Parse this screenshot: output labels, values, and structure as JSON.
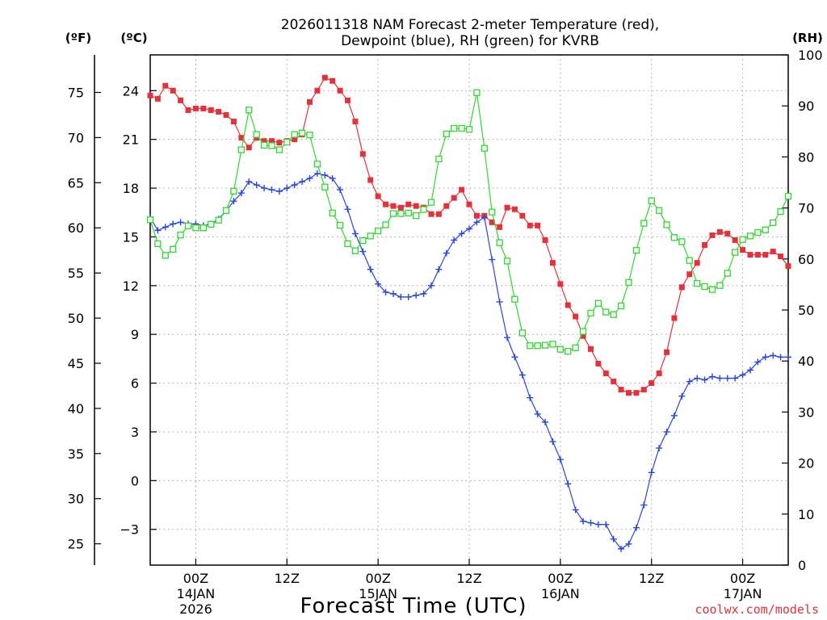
{
  "chart_data": {
    "type": "line",
    "title": [
      "2026011318 NAM Forecast 2-meter Temperature (red),",
      "Dewpoint (blue), RH (green) for KVRB"
    ],
    "xlabel": "Forecast Time (UTC)",
    "credit": "coolwx.com/models",
    "units": {
      "fahrenheit": "(ºF)",
      "celsius": "(ºC)",
      "rh": "(RH)"
    },
    "x_range_hours": [
      0,
      84
    ],
    "x_ticks": [
      {
        "hour": 6,
        "time": "00Z",
        "date": "14JAN",
        "year": "2026"
      },
      {
        "hour": 18,
        "time": "12Z",
        "date": "",
        "year": ""
      },
      {
        "hour": 30,
        "time": "00Z",
        "date": "15JAN",
        "year": ""
      },
      {
        "hour": 42,
        "time": "12Z",
        "date": "",
        "year": ""
      },
      {
        "hour": 54,
        "time": "00Z",
        "date": "16JAN",
        "year": ""
      },
      {
        "hour": 66,
        "time": "12Z",
        "date": "",
        "year": ""
      },
      {
        "hour": 78,
        "time": "00Z",
        "date": "17JAN",
        "year": ""
      }
    ],
    "celsius_axis": {
      "range": [
        -5.2,
        26.2
      ],
      "ticks": [
        "24",
        "21",
        "18",
        "15",
        "12",
        "9",
        "6",
        "3",
        "0",
        "−3"
      ],
      "tick_values": [
        24,
        21,
        18,
        15,
        12,
        9,
        6,
        3,
        0,
        -3
      ]
    },
    "fahrenheit_axis": {
      "ticks": [
        "75",
        "70",
        "65",
        "60",
        "55",
        "50",
        "45",
        "40",
        "35",
        "30",
        "25"
      ],
      "tick_values": [
        75,
        70,
        65,
        60,
        55,
        50,
        45,
        40,
        35,
        30,
        25
      ]
    },
    "rh_axis": {
      "range": [
        0,
        100
      ],
      "ticks": [
        "100",
        "90",
        "80",
        "70",
        "60",
        "50",
        "40",
        "30",
        "20",
        "10",
        "0"
      ],
      "tick_values": [
        100,
        90,
        80,
        70,
        60,
        50,
        40,
        30,
        20,
        10,
        0
      ]
    },
    "colors": {
      "temperature": "#e8303a",
      "dewpoint": "#2a44e0",
      "rh": "#2ed82e",
      "grid": "#a0a0a0"
    },
    "series": [
      {
        "name": "Temperature",
        "units": "C",
        "hours": [
          0,
          1,
          2,
          3,
          4,
          5,
          6,
          7,
          8,
          9,
          10,
          11,
          12,
          13,
          14,
          15,
          16,
          17,
          18,
          19,
          20,
          21,
          22,
          23,
          24,
          25,
          26,
          27,
          28,
          29,
          30,
          31,
          32,
          33,
          34,
          35,
          36,
          37,
          38,
          39,
          40,
          41,
          42,
          43,
          44,
          45,
          46,
          47,
          48,
          49,
          50,
          51,
          52,
          53,
          54,
          55,
          56,
          57,
          58,
          59,
          60,
          61,
          62,
          63,
          64,
          65,
          66,
          67,
          68,
          69,
          70,
          71,
          72,
          73,
          74,
          75,
          76,
          77,
          78,
          79,
          80,
          81,
          82,
          83,
          84
        ],
        "values": [
          23.7,
          23.5,
          24.3,
          24.0,
          23.4,
          22.8,
          22.9,
          22.9,
          22.8,
          22.7,
          22.5,
          22.1,
          21.1,
          20.5,
          21.1,
          20.9,
          20.9,
          20.8,
          20.9,
          21.0,
          21.3,
          23.3,
          24.0,
          24.8,
          24.6,
          24.0,
          23.4,
          22.1,
          20.1,
          18.5,
          17.5,
          17.0,
          16.9,
          16.8,
          17.0,
          16.9,
          16.8,
          16.4,
          16.4,
          16.9,
          17.4,
          17.9,
          17.0,
          16.3,
          16.3,
          15.9,
          15.6,
          16.8,
          16.7,
          16.3,
          15.7,
          15.7,
          14.8,
          13.4,
          12.1,
          10.8,
          10.1,
          8.9,
          8.1,
          7.2,
          6.6,
          6.1,
          5.6,
          5.4,
          5.4,
          5.6,
          6.0,
          6.6,
          7.9,
          10.0,
          11.9,
          12.7,
          13.4,
          14.5,
          15.1,
          15.3,
          15.2,
          14.8,
          14.2,
          13.9,
          13.9,
          13.9,
          14.1,
          13.8,
          13.2
        ]
      },
      {
        "name": "Dewpoint",
        "units": "C",
        "hours": [
          0,
          1,
          2,
          3,
          4,
          5,
          6,
          7,
          8,
          9,
          10,
          11,
          12,
          13,
          14,
          15,
          16,
          17,
          18,
          19,
          20,
          21,
          22,
          23,
          24,
          25,
          26,
          27,
          28,
          29,
          30,
          31,
          32,
          33,
          34,
          35,
          36,
          37,
          38,
          39,
          40,
          41,
          42,
          43,
          44,
          45,
          46,
          47,
          48,
          49,
          50,
          51,
          52,
          53,
          54,
          55,
          56,
          57,
          58,
          59,
          60,
          61,
          62,
          63,
          64,
          65,
          66,
          67,
          68,
          69,
          70,
          71,
          72,
          73,
          74,
          75,
          76,
          77,
          78,
          79,
          80,
          81,
          82,
          83,
          84
        ],
        "values": [
          16.2,
          15.4,
          15.6,
          15.8,
          15.9,
          15.8,
          15.8,
          15.7,
          15.8,
          16.1,
          16.6,
          17.2,
          17.7,
          18.4,
          18.2,
          18.0,
          17.9,
          17.8,
          18.0,
          18.2,
          18.4,
          18.6,
          18.9,
          18.8,
          18.6,
          17.9,
          16.7,
          15.2,
          14.1,
          13.0,
          12.1,
          11.6,
          11.5,
          11.3,
          11.3,
          11.4,
          11.5,
          12.0,
          13.0,
          14.0,
          14.8,
          15.2,
          15.5,
          15.9,
          16.2,
          13.6,
          11.0,
          8.8,
          7.6,
          6.5,
          5.1,
          4.1,
          3.6,
          2.4,
          1.3,
          -0.2,
          -1.8,
          -2.5,
          -2.6,
          -2.7,
          -2.7,
          -3.6,
          -4.2,
          -3.9,
          -2.9,
          -1.5,
          0.5,
          2.0,
          3.0,
          4.0,
          5.2,
          6.1,
          6.3,
          6.2,
          6.4,
          6.3,
          6.3,
          6.3,
          6.5,
          6.8,
          7.3,
          7.6,
          7.7,
          7.6,
          7.6
        ]
      },
      {
        "name": "RH",
        "units": "%",
        "hours": [
          0,
          1,
          2,
          3,
          4,
          5,
          6,
          7,
          8,
          9,
          10,
          11,
          12,
          13,
          14,
          15,
          16,
          17,
          18,
          19,
          20,
          21,
          22,
          23,
          24,
          25,
          26,
          27,
          28,
          29,
          30,
          31,
          32,
          33,
          34,
          35,
          36,
          37,
          38,
          39,
          40,
          41,
          42,
          43,
          44,
          45,
          46,
          47,
          48,
          49,
          50,
          51,
          52,
          53,
          54,
          55,
          56,
          57,
          58,
          59,
          60,
          61,
          62,
          63,
          64,
          65,
          66,
          67,
          68,
          69,
          70,
          71,
          72,
          73,
          74,
          75,
          76,
          77,
          78,
          79,
          80,
          81,
          82,
          83,
          84
        ],
        "values": [
          67.7,
          63.0,
          60.7,
          61.9,
          64.7,
          66.5,
          66.1,
          66.1,
          66.8,
          67.6,
          69.5,
          73.3,
          81.4,
          89.2,
          84.4,
          82.3,
          82.2,
          81.4,
          82.9,
          84.4,
          84.7,
          84.3,
          78.6,
          74.1,
          69.0,
          66.6,
          63.0,
          61.6,
          63.6,
          64.5,
          65.5,
          66.7,
          68.9,
          68.9,
          69.0,
          68.5,
          69.7,
          71.1,
          79.6,
          84.5,
          85.6,
          85.6,
          85.4,
          92.6,
          81.7,
          69.2,
          63.2,
          59.6,
          52.1,
          45.5,
          43.0,
          43.0,
          43.1,
          43.3,
          42.3,
          41.9,
          42.6,
          45.8,
          49.4,
          51.3,
          49.6,
          49.1,
          50.8,
          55.4,
          61.7,
          67.0,
          71.4,
          69.5,
          66.7,
          64.2,
          63.4,
          59.7,
          55.2,
          54.6,
          54.0,
          54.8,
          57.2,
          61.3,
          63.8,
          64.5,
          65.2,
          65.7,
          67.1,
          69.3,
          72.3
        ]
      }
    ]
  }
}
